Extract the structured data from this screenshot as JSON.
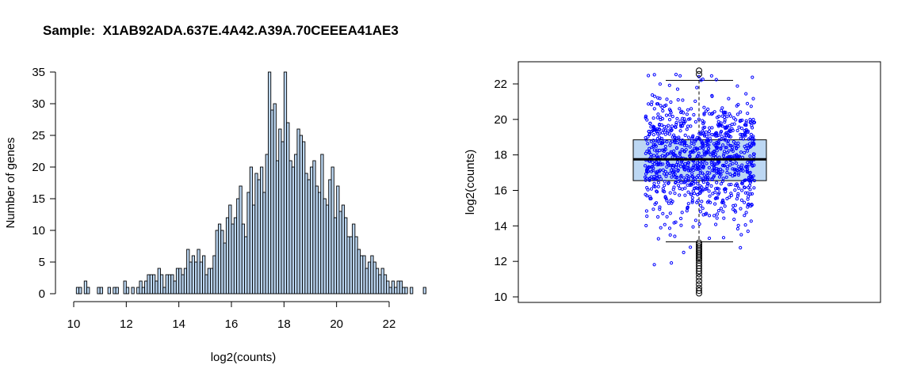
{
  "title": "Sample:  X1AB92ADA.637E.4A42.A39A.70CEEEA41AE3",
  "colors": {
    "bar_fill": "#bcd7f3",
    "box_fill": "#bcd7f3",
    "points": "#0000ff",
    "outliers": "#000000"
  },
  "chart_data": [
    {
      "type": "bar",
      "subtype": "histogram",
      "xlabel": "log2(counts)",
      "ylabel": "Number of genes",
      "xlim": [
        10,
        22.8
      ],
      "ylim": [
        0,
        35
      ],
      "xticks": [
        "10",
        "12",
        "14",
        "16",
        "18",
        "20",
        "22"
      ],
      "yticks": [
        "0",
        "5",
        "10",
        "15",
        "20",
        "25",
        "30",
        "35"
      ],
      "bin_start": 10.1,
      "bin_width": 0.1,
      "values": [
        1,
        1,
        0,
        2,
        1,
        0,
        0,
        0,
        1,
        1,
        0,
        0,
        1,
        0,
        1,
        1,
        0,
        0,
        2,
        1,
        0,
        1,
        0,
        1,
        2,
        1,
        2,
        3,
        3,
        3,
        2,
        4,
        3,
        1,
        3,
        3,
        3,
        2,
        4,
        4,
        3,
        4,
        7,
        5,
        6,
        5,
        7,
        5,
        6,
        3,
        4,
        4,
        6,
        10,
        11,
        10,
        8,
        12,
        14,
        11,
        12,
        15,
        17,
        11,
        9,
        16,
        20,
        14,
        19,
        18,
        20,
        16,
        22,
        35,
        29,
        30,
        21,
        26,
        24,
        35,
        27,
        21,
        20,
        22,
        26,
        25,
        24,
        19,
        18,
        20,
        21,
        17,
        16,
        22,
        15,
        14,
        18,
        20,
        12,
        17,
        13,
        14,
        12,
        9,
        9,
        11,
        9,
        7,
        6,
        6,
        4,
        5,
        6,
        5,
        4,
        3,
        4,
        3,
        2,
        1,
        2,
        1,
        2,
        2,
        1,
        1,
        0,
        1,
        0,
        0,
        0,
        0,
        1
      ],
      "grid": false
    },
    {
      "type": "box",
      "ylabel": "log2(counts)",
      "ylim": [
        10,
        22.8
      ],
      "yticks": [
        "10",
        "12",
        "14",
        "16",
        "18",
        "20",
        "22"
      ],
      "stats": {
        "min": 13.1,
        "q1": 16.55,
        "median": 17.75,
        "q3": 18.85,
        "max": 22.2
      },
      "outliers": [
        22.75,
        22.55,
        13.05,
        12.95,
        12.85,
        12.75,
        12.65,
        12.55,
        12.45,
        12.35,
        12.25,
        12.15,
        12.05,
        11.9,
        11.75,
        11.6,
        11.45,
        11.3,
        11.1,
        10.9,
        10.7,
        10.5,
        10.35,
        10.2
      ],
      "n_points": 1000,
      "jitter": true,
      "grid": false
    }
  ]
}
